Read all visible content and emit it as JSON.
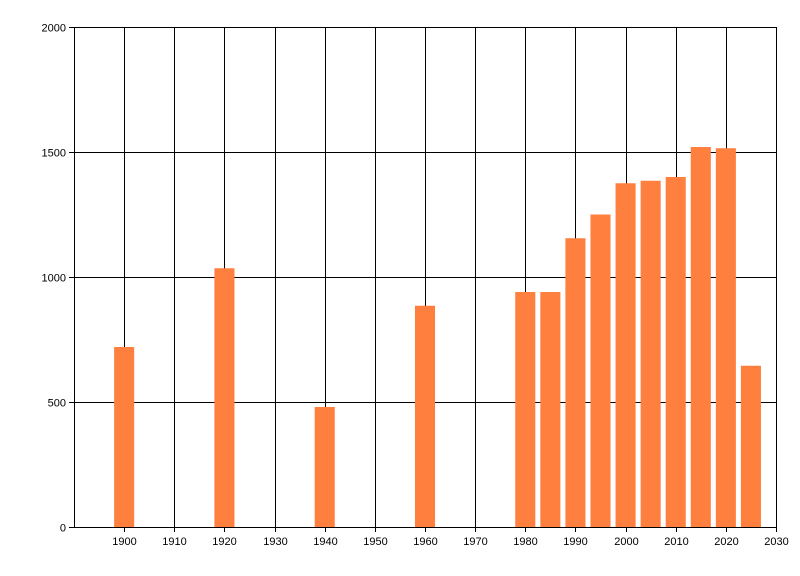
{
  "chart_data": {
    "type": "bar",
    "title": "",
    "xlabel": "",
    "ylabel": "",
    "xlim": [
      1890,
      2030
    ],
    "ylim": [
      0,
      2000
    ],
    "xticks": [
      "1900",
      "1910",
      "1920",
      "1930",
      "1940",
      "1950",
      "1960",
      "1970",
      "1980",
      "1990",
      "2000",
      "2010",
      "2020",
      "2030"
    ],
    "yticks": [
      "0",
      "500",
      "1000",
      "1500",
      "2000"
    ],
    "grid": true,
    "legend": "none",
    "bar_color": "#ff7f3f",
    "points": [
      {
        "x": 1900,
        "y": 720
      },
      {
        "x": 1920,
        "y": 1035
      },
      {
        "x": 1940,
        "y": 480
      },
      {
        "x": 1960,
        "y": 885
      },
      {
        "x": 1980,
        "y": 940
      },
      {
        "x": 1985,
        "y": 940
      },
      {
        "x": 1990,
        "y": 1155
      },
      {
        "x": 1995,
        "y": 1250
      },
      {
        "x": 2000,
        "y": 1375
      },
      {
        "x": 2005,
        "y": 1385
      },
      {
        "x": 2010,
        "y": 1400
      },
      {
        "x": 2015,
        "y": 1520
      },
      {
        "x": 2020,
        "y": 1515
      },
      {
        "x": 2025,
        "y": 645
      }
    ]
  }
}
